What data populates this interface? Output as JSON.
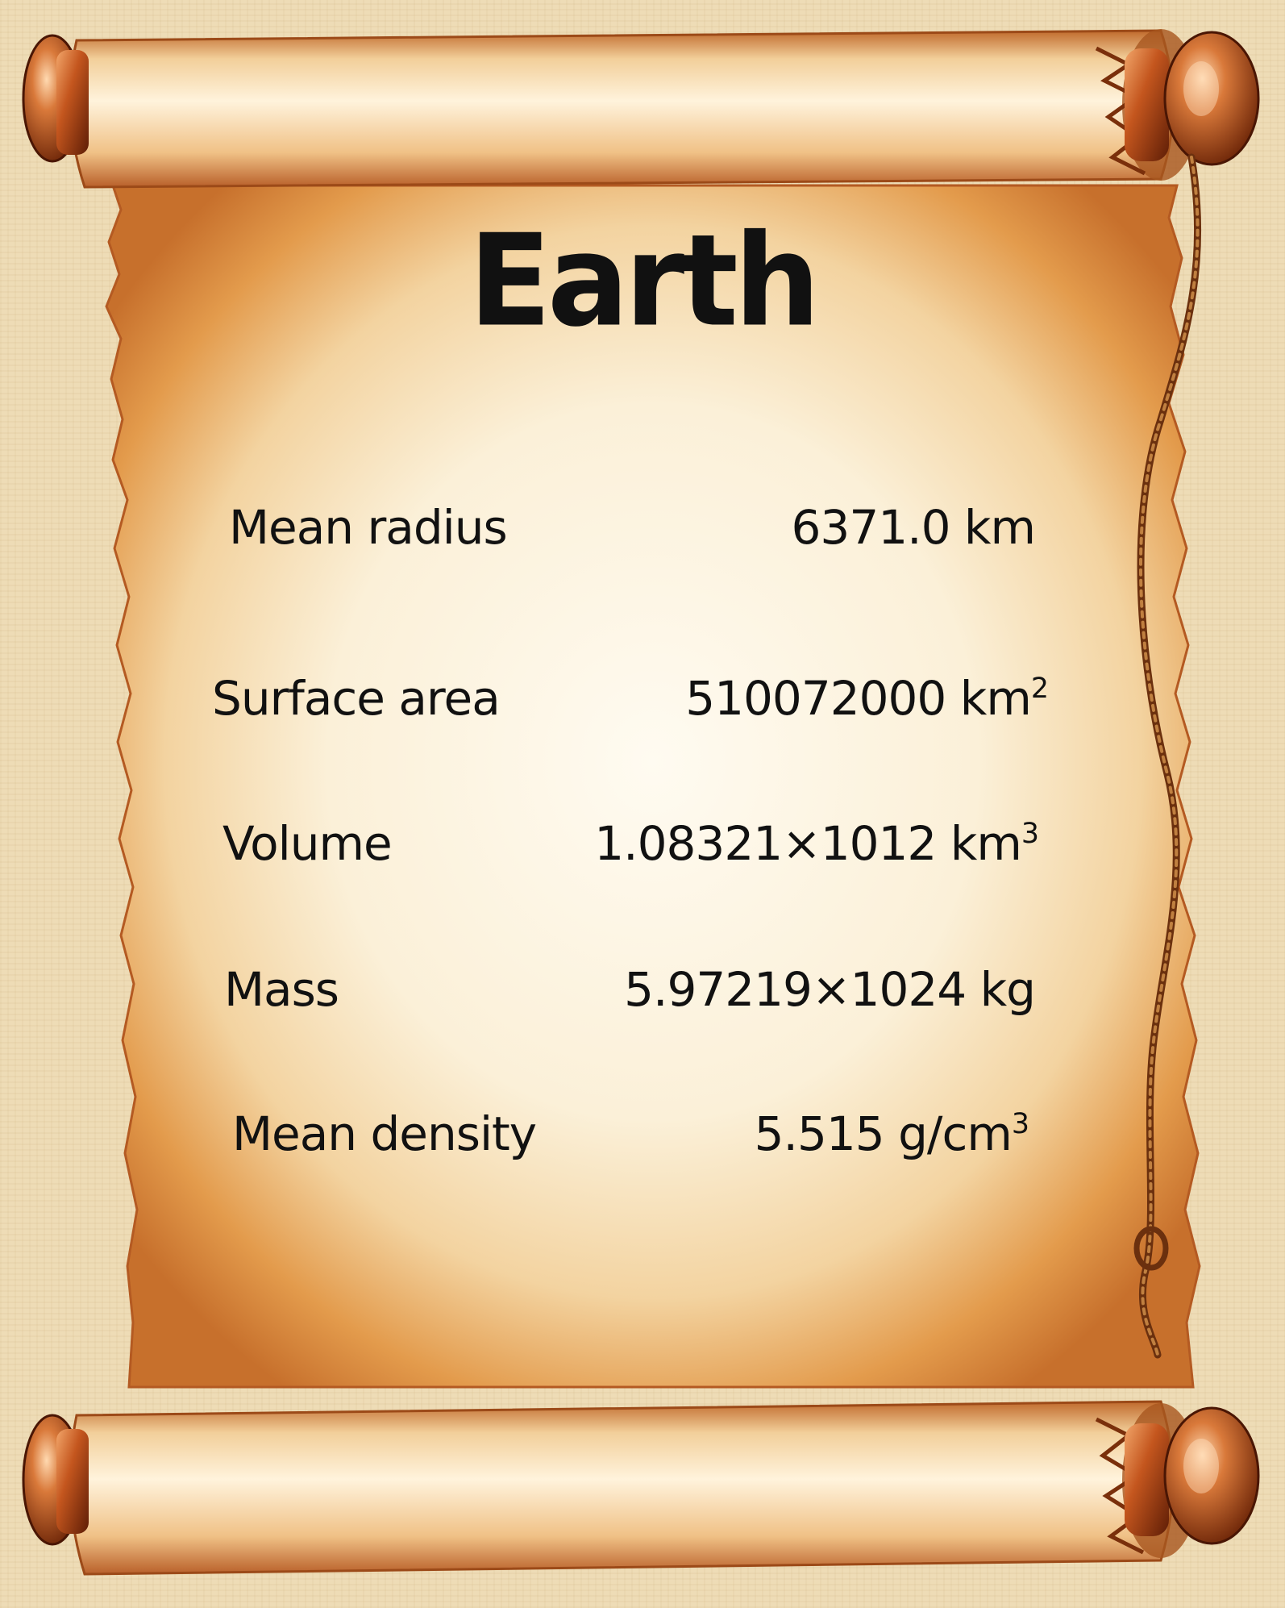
{
  "document": {
    "title": "Earth",
    "rows": [
      {
        "label": "Mean radius",
        "value": "6371.0 km"
      },
      {
        "label": "Surface area",
        "value": "510072000 km",
        "exponent": "2"
      },
      {
        "label": "Volume",
        "value": "1.08321×1012 km",
        "exponent": "3"
      },
      {
        "label": "Mass",
        "value": "5.97219×1024 kg"
      },
      {
        "label": "Mean density",
        "value": "5.515  g/cm",
        "exponent": "3"
      }
    ]
  },
  "colors": {
    "background": "#eedcb6",
    "parchment_light": "#fdf6e6",
    "parchment_dark": "#d98a3a",
    "scroll_edge": "#8c3a12",
    "rope": "#8a4a1e",
    "text": "#111111"
  }
}
